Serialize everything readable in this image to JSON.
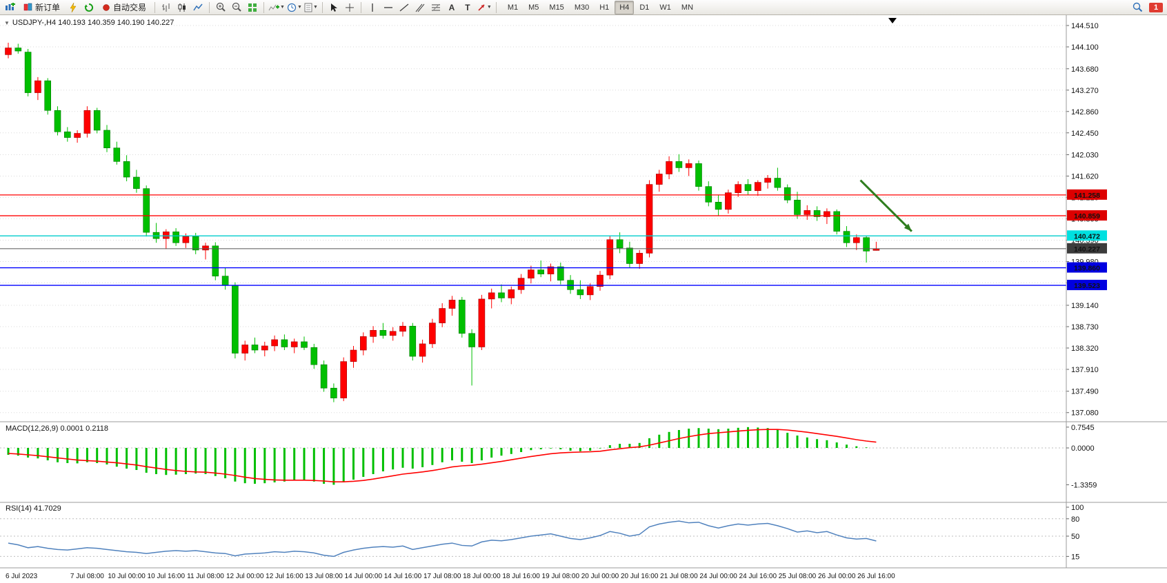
{
  "toolbar": {
    "new_order_label": "新订单",
    "auto_trading_label": "自动交易",
    "timeframes": [
      "M1",
      "M5",
      "M15",
      "M30",
      "H1",
      "H4",
      "D1",
      "W1",
      "MN"
    ],
    "active_timeframe": "H4",
    "notification_count": "1"
  },
  "chart_data": [
    {
      "type": "candlestick",
      "header_text": "USDJPY-,H4 140.193 140.359 140.190 140.227",
      "symbol": "USDJPY-",
      "timeframe": "H4",
      "up_color": "#ff0000",
      "down_color": "#00bf00",
      "ylim": [
        137.08,
        144.51
      ],
      "price_ticks": [
        "144.510",
        "144.100",
        "143.680",
        "143.270",
        "142.860",
        "142.450",
        "142.030",
        "141.620",
        "141.210",
        "140.800",
        "140.390",
        "139.980",
        "139.570",
        "139.140",
        "138.730",
        "138.320",
        "137.910",
        "137.490",
        "137.080"
      ],
      "time_labels": [
        {
          "text": "6 Jul 2023",
          "bar": 0
        },
        {
          "text": "7 Jul 08:00",
          "bar": 8
        },
        {
          "text": "10 Jul 00:00",
          "bar": 12
        },
        {
          "text": "10 Jul 16:00",
          "bar": 16
        },
        {
          "text": "11 Jul 08:00",
          "bar": 20
        },
        {
          "text": "12 Jul 00:00",
          "bar": 24
        },
        {
          "text": "12 Jul 16:00",
          "bar": 28
        },
        {
          "text": "13 Jul 08:00",
          "bar": 32
        },
        {
          "text": "14 Jul 00:00",
          "bar": 36
        },
        {
          "text": "14 Jul 16:00",
          "bar": 40
        },
        {
          "text": "17 Jul 08:00",
          "bar": 44
        },
        {
          "text": "18 Jul 00:00",
          "bar": 48
        },
        {
          "text": "18 Jul 16:00",
          "bar": 52
        },
        {
          "text": "19 Jul 08:00",
          "bar": 56
        },
        {
          "text": "20 Jul 00:00",
          "bar": 60
        },
        {
          "text": "20 Jul 16:00",
          "bar": 64
        },
        {
          "text": "21 Jul 08:00",
          "bar": 68
        },
        {
          "text": "24 Jul 00:00",
          "bar": 72
        },
        {
          "text": "24 Jul 16:00",
          "bar": 76
        },
        {
          "text": "25 Jul 08:00",
          "bar": 80
        },
        {
          "text": "26 Jul 00:00",
          "bar": 84
        },
        {
          "text": "26 Jul 16:00",
          "bar": 88
        }
      ],
      "candles": [
        [
          143.95,
          144.18,
          143.88,
          144.08
        ],
        [
          144.08,
          144.16,
          143.97,
          144.02
        ],
        [
          144.0,
          144.06,
          143.15,
          143.22
        ],
        [
          143.22,
          143.52,
          143.08,
          143.45
        ],
        [
          143.45,
          143.5,
          142.8,
          142.88
        ],
        [
          142.88,
          142.96,
          142.4,
          142.47
        ],
        [
          142.47,
          142.56,
          142.28,
          142.36
        ],
        [
          142.36,
          142.5,
          142.26,
          142.44
        ],
        [
          142.44,
          142.96,
          142.36,
          142.88
        ],
        [
          142.88,
          142.93,
          142.44,
          142.5
        ],
        [
          142.5,
          142.6,
          142.08,
          142.16
        ],
        [
          142.16,
          142.28,
          141.84,
          141.9
        ],
        [
          141.9,
          142.02,
          141.52,
          141.6
        ],
        [
          141.6,
          141.74,
          141.3,
          141.38
        ],
        [
          141.38,
          141.44,
          140.46,
          140.54
        ],
        [
          140.54,
          140.72,
          140.34,
          140.42
        ],
        [
          140.42,
          140.6,
          140.22,
          140.55
        ],
        [
          140.55,
          140.62,
          140.28,
          140.34
        ],
        [
          140.34,
          140.52,
          140.24,
          140.46
        ],
        [
          140.46,
          140.53,
          140.12,
          140.2
        ],
        [
          140.2,
          140.34,
          140.02,
          140.28
        ],
        [
          140.28,
          140.35,
          139.62,
          139.7
        ],
        [
          139.7,
          139.86,
          139.44,
          139.52
        ],
        [
          139.52,
          139.58,
          138.12,
          138.22
        ],
        [
          138.22,
          138.46,
          138.08,
          138.38
        ],
        [
          138.38,
          138.52,
          138.22,
          138.28
        ],
        [
          138.28,
          138.44,
          138.16,
          138.36
        ],
        [
          138.36,
          138.56,
          138.26,
          138.48
        ],
        [
          138.48,
          138.58,
          138.28,
          138.34
        ],
        [
          138.34,
          138.5,
          138.22,
          138.44
        ],
        [
          138.44,
          138.54,
          138.28,
          138.33
        ],
        [
          138.33,
          138.4,
          137.92,
          138.0
        ],
        [
          138.0,
          138.08,
          137.48,
          137.55
        ],
        [
          137.55,
          137.64,
          137.28,
          137.36
        ],
        [
          137.36,
          138.14,
          137.3,
          138.06
        ],
        [
          138.06,
          138.36,
          137.94,
          138.28
        ],
        [
          138.28,
          138.62,
          138.18,
          138.54
        ],
        [
          138.54,
          138.74,
          138.42,
          138.66
        ],
        [
          138.66,
          138.8,
          138.5,
          138.56
        ],
        [
          138.56,
          138.72,
          138.46,
          138.64
        ],
        [
          138.64,
          138.82,
          138.54,
          138.74
        ],
        [
          138.74,
          138.8,
          138.08,
          138.16
        ],
        [
          138.16,
          138.48,
          138.04,
          138.4
        ],
        [
          138.4,
          138.88,
          138.32,
          138.8
        ],
        [
          138.8,
          139.18,
          138.72,
          139.08
        ],
        [
          139.08,
          139.32,
          138.94,
          139.24
        ],
        [
          139.24,
          139.3,
          138.52,
          138.6
        ],
        [
          138.6,
          138.68,
          137.6,
          138.34
        ],
        [
          138.34,
          139.34,
          138.28,
          139.26
        ],
        [
          139.26,
          139.46,
          139.08,
          139.38
        ],
        [
          139.38,
          139.54,
          139.2,
          139.28
        ],
        [
          139.28,
          139.5,
          139.16,
          139.44
        ],
        [
          139.44,
          139.74,
          139.36,
          139.66
        ],
        [
          139.66,
          139.9,
          139.56,
          139.82
        ],
        [
          139.82,
          140.0,
          139.68,
          139.74
        ],
        [
          139.74,
          139.94,
          139.6,
          139.88
        ],
        [
          139.88,
          139.96,
          139.54,
          139.62
        ],
        [
          139.62,
          139.72,
          139.36,
          139.44
        ],
        [
          139.44,
          139.62,
          139.26,
          139.34
        ],
        [
          139.34,
          139.56,
          139.24,
          139.5
        ],
        [
          139.5,
          139.8,
          139.42,
          139.72
        ],
        [
          139.72,
          140.48,
          139.64,
          140.4
        ],
        [
          140.4,
          140.54,
          140.14,
          140.24
        ],
        [
          140.24,
          140.36,
          139.86,
          139.94
        ],
        [
          139.94,
          140.2,
          139.84,
          140.14
        ],
        [
          140.14,
          141.54,
          140.06,
          141.46
        ],
        [
          141.46,
          141.74,
          141.32,
          141.66
        ],
        [
          141.66,
          142.0,
          141.56,
          141.9
        ],
        [
          141.9,
          142.04,
          141.7,
          141.78
        ],
        [
          141.78,
          141.94,
          141.62,
          141.86
        ],
        [
          141.86,
          141.92,
          141.34,
          141.42
        ],
        [
          141.42,
          141.52,
          141.04,
          141.12
        ],
        [
          141.12,
          141.26,
          140.86,
          140.98
        ],
        [
          140.98,
          141.36,
          140.9,
          141.3
        ],
        [
          141.3,
          141.52,
          141.22,
          141.46
        ],
        [
          141.46,
          141.56,
          141.26,
          141.34
        ],
        [
          141.34,
          141.54,
          141.24,
          141.5
        ],
        [
          141.5,
          141.64,
          141.38,
          141.58
        ],
        [
          141.58,
          141.78,
          141.34,
          141.4
        ],
        [
          141.4,
          141.46,
          141.1,
          141.16
        ],
        [
          141.16,
          141.32,
          140.8,
          140.88
        ],
        [
          140.88,
          141.06,
          140.78,
          140.96
        ],
        [
          140.96,
          141.04,
          140.76,
          140.84
        ],
        [
          140.84,
          141.0,
          140.7,
          140.94
        ],
        [
          140.94,
          140.98,
          140.5,
          140.56
        ],
        [
          140.56,
          140.66,
          140.26,
          140.34
        ],
        [
          140.34,
          140.5,
          140.2,
          140.44
        ],
        [
          140.44,
          140.48,
          139.96,
          140.18
        ],
        [
          140.193,
          140.359,
          140.19,
          140.227
        ]
      ],
      "hlines": [
        {
          "price": 141.258,
          "color": "#ff0000",
          "label": "141.258",
          "label_bg": "#dd0000",
          "label_fg": "#ffffff"
        },
        {
          "price": 140.859,
          "color": "#ff0000",
          "label": "140.859",
          "label_bg": "#dd0000",
          "label_fg": "#ffffff"
        },
        {
          "price": 140.472,
          "color": "#00cccc",
          "label": "140.472",
          "label_bg": "#00e0e0",
          "label_fg": "#00333a"
        },
        {
          "price": 139.86,
          "color": "#0000ff",
          "label": "139.860",
          "label_bg": "#0000e0",
          "label_fg": "#ffffff"
        },
        {
          "price": 139.523,
          "color": "#0000ff",
          "label": "139.523",
          "label_bg": "#0000e0",
          "label_fg": "#ffffff"
        }
      ],
      "current_price": {
        "value": 140.227,
        "label": "140.227",
        "line_color": "#555555",
        "label_bg": "#3c3c3c"
      },
      "annotation_arrow": {
        "from_bar": 86.4,
        "from_price": 141.54,
        "to_bar": 91.6,
        "to_price": 140.56,
        "color": "#2e7d1e"
      }
    },
    {
      "type": "bar",
      "name": "MACD",
      "label": "MACD(12,26,9) 0.0001 0.2118",
      "hist_color": "#00bf00",
      "signal_color": "#ff0000",
      "ylim": [
        -1.45,
        0.85
      ],
      "scale_labels": [
        "0.7545",
        "0.0000",
        "-1.3359"
      ],
      "hist": [
        -0.25,
        -0.28,
        -0.35,
        -0.38,
        -0.45,
        -0.52,
        -0.55,
        -0.56,
        -0.52,
        -0.55,
        -0.6,
        -0.68,
        -0.75,
        -0.8,
        -0.9,
        -0.95,
        -0.98,
        -0.97,
        -0.95,
        -0.93,
        -0.95,
        -1.02,
        -1.1,
        -1.22,
        -1.28,
        -1.3,
        -1.28,
        -1.25,
        -1.22,
        -1.18,
        -1.18,
        -1.22,
        -1.3,
        -1.336,
        -1.25,
        -1.15,
        -1.05,
        -0.95,
        -0.85,
        -0.78,
        -0.72,
        -0.75,
        -0.7,
        -0.62,
        -0.52,
        -0.45,
        -0.5,
        -0.55,
        -0.45,
        -0.35,
        -0.28,
        -0.22,
        -0.15,
        -0.08,
        -0.05,
        -0.02,
        -0.05,
        -0.1,
        -0.12,
        -0.1,
        -0.02,
        0.1,
        0.15,
        0.15,
        0.18,
        0.35,
        0.48,
        0.58,
        0.65,
        0.7,
        0.72,
        0.7,
        0.68,
        0.7,
        0.73,
        0.7545,
        0.74,
        0.72,
        0.65,
        0.55,
        0.45,
        0.38,
        0.32,
        0.28,
        0.2,
        0.12,
        0.06,
        0.02,
        0.0001
      ],
      "signal": [
        -0.2,
        -0.22,
        -0.25,
        -0.28,
        -0.32,
        -0.36,
        -0.4,
        -0.44,
        -0.46,
        -0.48,
        -0.51,
        -0.54,
        -0.58,
        -0.62,
        -0.68,
        -0.73,
        -0.78,
        -0.82,
        -0.85,
        -0.87,
        -0.88,
        -0.91,
        -0.95,
        -1.0,
        -1.06,
        -1.11,
        -1.14,
        -1.16,
        -1.17,
        -1.17,
        -1.17,
        -1.18,
        -1.2,
        -1.23,
        -1.23,
        -1.21,
        -1.18,
        -1.13,
        -1.07,
        -1.01,
        -0.95,
        -0.91,
        -0.87,
        -0.82,
        -0.76,
        -0.69,
        -0.65,
        -0.63,
        -0.59,
        -0.54,
        -0.49,
        -0.43,
        -0.37,
        -0.31,
        -0.26,
        -0.21,
        -0.18,
        -0.16,
        -0.15,
        -0.14,
        -0.12,
        -0.07,
        -0.03,
        0.01,
        0.04,
        0.1,
        0.18,
        0.26,
        0.34,
        0.41,
        0.47,
        0.52,
        0.55,
        0.58,
        0.61,
        0.64,
        0.66,
        0.67,
        0.67,
        0.65,
        0.61,
        0.57,
        0.52,
        0.47,
        0.42,
        0.36,
        0.3,
        0.25,
        0.2118
      ]
    },
    {
      "type": "line",
      "name": "RSI",
      "label": "RSI(14) 41.7029",
      "line_color": "#4f81bd",
      "ylim": [
        0,
        100
      ],
      "levels": [
        80,
        50,
        15
      ],
      "scale_labels": [
        "100",
        "80",
        "50",
        "15"
      ],
      "values": [
        38,
        35,
        30,
        32,
        29,
        27,
        26,
        28,
        30,
        29,
        27,
        25,
        23,
        22,
        20,
        22,
        24,
        25,
        24,
        25,
        23,
        21,
        20,
        16,
        19,
        20,
        21,
        23,
        22,
        24,
        23,
        21,
        17,
        15,
        22,
        26,
        29,
        31,
        32,
        31,
        33,
        27,
        30,
        33,
        36,
        38,
        34,
        33,
        40,
        43,
        42,
        44,
        47,
        50,
        52,
        54,
        50,
        46,
        44,
        47,
        51,
        58,
        55,
        50,
        53,
        66,
        71,
        74,
        76,
        73,
        74,
        68,
        64,
        68,
        71,
        69,
        71,
        72,
        68,
        63,
        57,
        59,
        56,
        58,
        52,
        47,
        45,
        46,
        41.7
      ]
    }
  ]
}
